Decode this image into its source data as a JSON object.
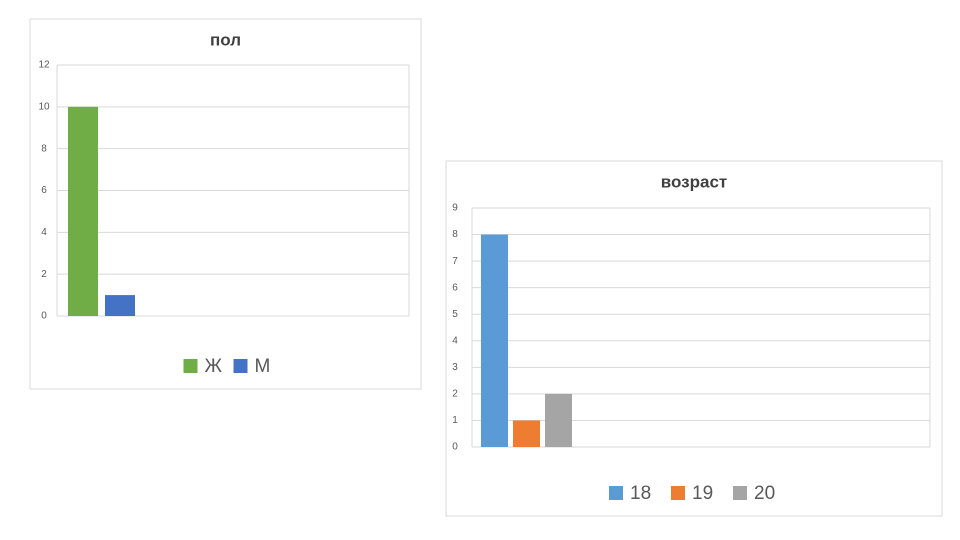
{
  "chart_data": [
    {
      "type": "bar",
      "title": "пол",
      "categories": [
        null
      ],
      "series": [
        {
          "name": "Ж",
          "color": "#70ad47",
          "values": [
            10
          ]
        },
        {
          "name": "М",
          "color": "#4472c4",
          "values": [
            1
          ]
        }
      ],
      "ylim": [
        0,
        12
      ],
      "yticks": [
        0,
        2,
        4,
        6,
        8,
        10,
        12
      ],
      "grid": true,
      "legend": "bottom"
    },
    {
      "type": "bar",
      "title": "возраст",
      "categories": [
        null
      ],
      "series": [
        {
          "name": "18",
          "color": "#5b9bd5",
          "values": [
            8
          ]
        },
        {
          "name": "19",
          "color": "#ed7d31",
          "values": [
            1
          ]
        },
        {
          "name": "20",
          "color": "#a5a5a5",
          "values": [
            2
          ]
        }
      ],
      "ylim": [
        0,
        9
      ],
      "yticks": [
        0,
        1,
        2,
        3,
        4,
        5,
        6,
        7,
        8,
        9
      ],
      "grid": true,
      "legend": "bottom"
    }
  ]
}
